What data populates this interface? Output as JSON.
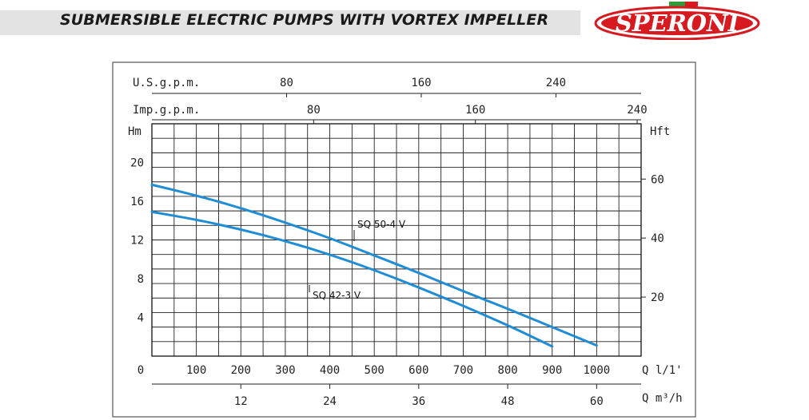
{
  "header": {
    "title": "SUBMERSIBLE ELECTRIC PUMPS WITH VORTEX IMPELLER",
    "logo_text": "SPERONI",
    "logo_mark": "®",
    "brand_color": "#d71920",
    "accent_green": "#2f9a3a"
  },
  "chart_data": {
    "type": "line",
    "x_unit_label": "Q l/1'",
    "xlim": [
      0,
      1100
    ],
    "x_ticks": [
      0,
      100,
      200,
      300,
      400,
      500,
      600,
      700,
      800,
      900,
      1000
    ],
    "y_unit_label": "Hm",
    "ylim": [
      0,
      24
    ],
    "y_ticks": [
      4,
      8,
      12,
      16,
      20
    ],
    "y_zero_label": "0",
    "secondary_axes": {
      "usgpm": {
        "label": "U.S.g.p.m.",
        "ticks": [
          80,
          160,
          240
        ],
        "per_l_min": 0.264172
      },
      "impgpm": {
        "label": "Imp.g.p.m.",
        "ticks": [
          80,
          160,
          240
        ],
        "per_l_min": 0.219969
      },
      "m3h": {
        "label": "Q m³/h",
        "ticks": [
          12,
          24,
          36,
          48,
          60
        ],
        "per_l_min": 0.06
      },
      "hft": {
        "label": "Hft",
        "ticks": [
          20,
          40,
          60
        ],
        "per_m": 3.28084
      }
    },
    "grid": true,
    "series_color": "#1f8dd6",
    "series": [
      {
        "name": "SQ 50-4 V",
        "x": [
          0,
          100,
          200,
          300,
          400,
          500,
          600,
          700,
          800,
          900,
          1000
        ],
        "y": [
          17.7,
          16.6,
          15.3,
          13.8,
          12.2,
          10.4,
          8.6,
          6.7,
          4.9,
          3.0,
          1.1
        ]
      },
      {
        "name": "SQ 42-3 V",
        "x": [
          0,
          100,
          200,
          300,
          400,
          500,
          600,
          700,
          800,
          900
        ],
        "y": [
          14.9,
          14.1,
          13.1,
          11.9,
          10.5,
          8.9,
          7.1,
          5.2,
          3.2,
          1.0
        ]
      }
    ]
  }
}
